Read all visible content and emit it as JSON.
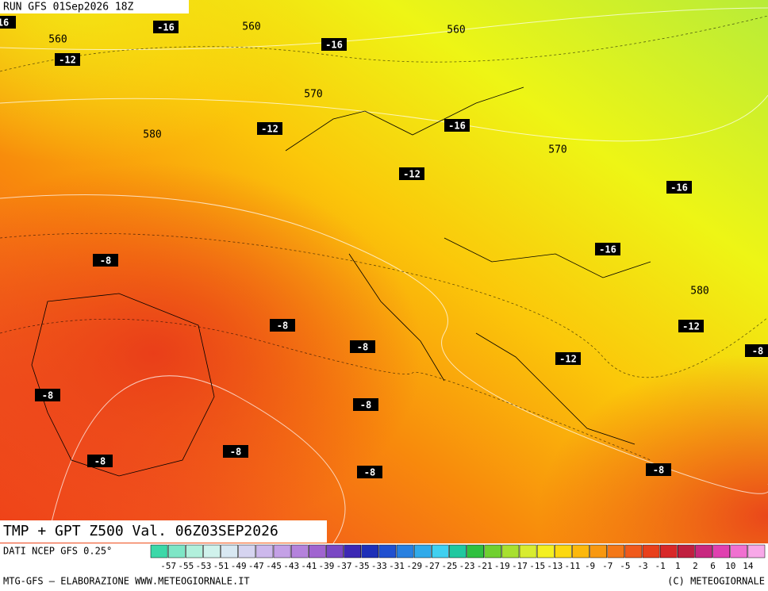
{
  "header": {
    "run": "RUN GFS 01Sep2026 18Z"
  },
  "map": {
    "temp_labels": [
      "16",
      "-16",
      "-16",
      "-12",
      "-12",
      "-16",
      "-12",
      "-16",
      "-8",
      "-16",
      "-8",
      "-12",
      "-8",
      "-8",
      "-12",
      "-8",
      "-8",
      "-8",
      "-8",
      "-8",
      "-8"
    ],
    "height_labels": [
      "560",
      "560",
      "560",
      "570",
      "580",
      "570",
      "580"
    ]
  },
  "footer": {
    "title": "TMP + GPT Z500 Val. 06Z03SEP2026",
    "source": "DATI NCEP GFS 0.25°",
    "credit": "MTG-GFS – ELABORAZIONE WWW.METEOGIORNALE.IT",
    "copyright": "(C) METEOGIORNALE",
    "scale_labels": [
      "-57",
      "-55",
      "-53",
      "-51",
      "-49",
      "-47",
      "-45",
      "-43",
      "-41",
      "-39",
      "-37",
      "-35",
      "-33",
      "-31",
      "-29",
      "-27",
      "-25",
      "-23",
      "-21",
      "-19",
      "-17",
      "-15",
      "-13",
      "-11",
      "-9",
      "-7",
      "-5",
      "-3",
      "-1",
      "1",
      "2",
      "6",
      "10",
      "14"
    ]
  }
}
